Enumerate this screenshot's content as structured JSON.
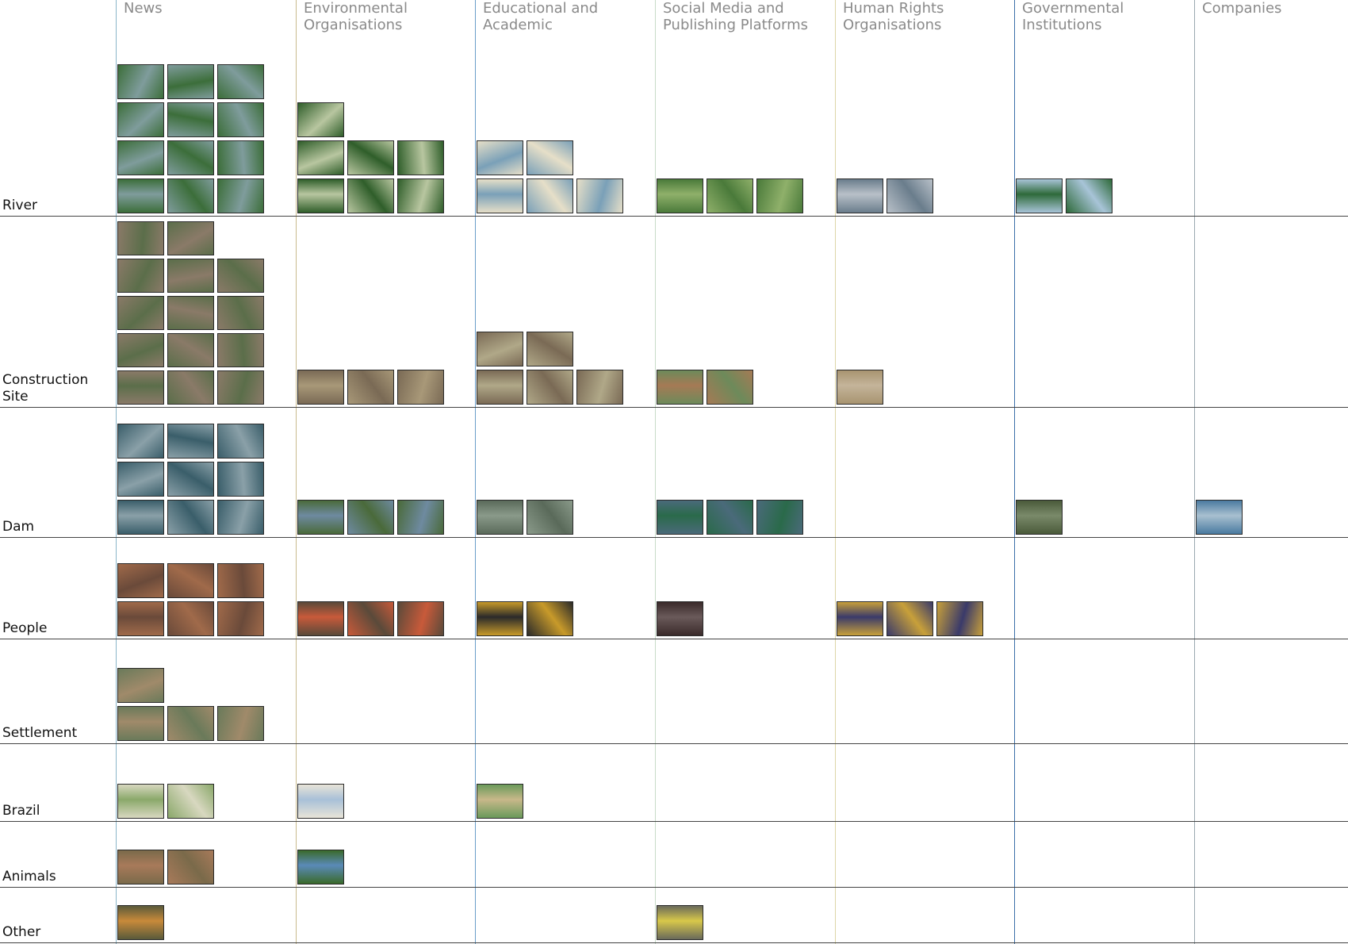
{
  "columns": [
    {
      "label": "News",
      "color": "#8ab4c8"
    },
    {
      "label": "Environmental Organisations",
      "color": "#c9b98c"
    },
    {
      "label": "Educational and Academic",
      "color": "#6a9ec8"
    },
    {
      "label": "Social Media and Publishing Platforms",
      "color": "#c8dcc8"
    },
    {
      "label": "Human Rights Organisations",
      "color": "#ddd6a8"
    },
    {
      "label": "Governmental Institutions",
      "color": "#3a6ea8"
    },
    {
      "label": "Companies",
      "color": "#9aa8b0"
    }
  ],
  "rows": [
    {
      "label": "River",
      "counts": [
        12,
        7,
        5,
        3,
        2,
        2,
        0
      ],
      "palette": [
        [
          "#3c6e3a",
          "#7f9c9c"
        ],
        [
          "#2f5e2a",
          "#b8c6a0"
        ],
        [
          "#e6dfc8",
          "#7aa0b8"
        ],
        [
          "#4a7a3a",
          "#8fb06a"
        ],
        [
          "#6a7d8c",
          "#b8c0c8"
        ],
        [
          "#a8c4d8",
          "#2e6a3a"
        ],
        [
          "#aaa",
          "#ccc"
        ]
      ]
    },
    {
      "label": "Construction Site",
      "counts": [
        14,
        3,
        5,
        2,
        1,
        0,
        0
      ],
      "palette": [
        [
          "#8a7a68",
          "#5b6e4a"
        ],
        [
          "#7a6a55",
          "#a89878"
        ],
        [
          "#7a6a55",
          "#b0a888"
        ],
        [
          "#6d8a5a",
          "#a57a55"
        ],
        [
          "#a89470",
          "#c4b49a"
        ],
        [
          "#aaa",
          "#ccc"
        ],
        [
          "#aaa",
          "#ccc"
        ]
      ]
    },
    {
      "label": "Dam",
      "counts": [
        9,
        3,
        2,
        3,
        0,
        1,
        1
      ],
      "palette": [
        [
          "#3a5e6a",
          "#8aa0a8"
        ],
        [
          "#4a6a3a",
          "#6e8aa0"
        ],
        [
          "#5a6a5a",
          "#8a9a8a"
        ],
        [
          "#4a6a7a",
          "#2a6a4a"
        ],
        [
          "#aaa",
          "#ccc"
        ],
        [
          "#4a5a3a",
          "#7a8a6a"
        ],
        [
          "#4a7aa0",
          "#a8c0d0"
        ]
      ]
    },
    {
      "label": "People",
      "counts": [
        6,
        3,
        2,
        1,
        3,
        0,
        0
      ],
      "palette": [
        [
          "#a06a4a",
          "#6a4a3a"
        ],
        [
          "#5a4a3a",
          "#c85a3a"
        ],
        [
          "#c89a2a",
          "#2a2a2a"
        ],
        [
          "#3a2a2a",
          "#6a5a5a"
        ],
        [
          "#c8a03a",
          "#3a3a6a"
        ],
        [
          "#aaa",
          "#ccc"
        ],
        [
          "#aaa",
          "#ccc"
        ]
      ]
    },
    {
      "label": "Settlement",
      "counts": [
        4,
        0,
        0,
        0,
        0,
        0,
        0
      ],
      "palette": [
        [
          "#6a7a5a",
          "#a08a6a"
        ],
        [
          "#aaa",
          "#ccc"
        ],
        [
          "#aaa",
          "#ccc"
        ],
        [
          "#aaa",
          "#ccc"
        ],
        [
          "#aaa",
          "#ccc"
        ],
        [
          "#aaa",
          "#ccc"
        ],
        [
          "#aaa",
          "#ccc"
        ]
      ]
    },
    {
      "label": "Brazil",
      "counts": [
        2,
        1,
        1,
        0,
        0,
        0,
        0
      ],
      "palette": [
        [
          "#d8d8c0",
          "#8aa86a"
        ],
        [
          "#e8e4d8",
          "#a8c0d8"
        ],
        [
          "#6a9a5a",
          "#c8b88a"
        ],
        [
          "#aaa",
          "#ccc"
        ],
        [
          "#aaa",
          "#ccc"
        ],
        [
          "#aaa",
          "#ccc"
        ],
        [
          "#aaa",
          "#ccc"
        ]
      ]
    },
    {
      "label": "Animals",
      "counts": [
        2,
        1,
        0,
        0,
        0,
        0,
        0
      ],
      "palette": [
        [
          "#7a6a4a",
          "#a87a5a"
        ],
        [
          "#3a6a2a",
          "#5a8ab8"
        ],
        [
          "#aaa",
          "#ccc"
        ],
        [
          "#aaa",
          "#ccc"
        ],
        [
          "#aaa",
          "#ccc"
        ],
        [
          "#aaa",
          "#ccc"
        ],
        [
          "#aaa",
          "#ccc"
        ]
      ]
    },
    {
      "label": "Other",
      "counts": [
        1,
        0,
        0,
        1,
        0,
        0,
        0
      ],
      "palette": [
        [
          "#5a5a3a",
          "#c88a3a"
        ],
        [
          "#aaa",
          "#ccc"
        ],
        [
          "#aaa",
          "#ccc"
        ],
        [
          "#6a6a5a",
          "#d8c84a"
        ],
        [
          "#aaa",
          "#ccc"
        ],
        [
          "#aaa",
          "#ccc"
        ],
        [
          "#aaa",
          "#ccc"
        ]
      ]
    }
  ]
}
